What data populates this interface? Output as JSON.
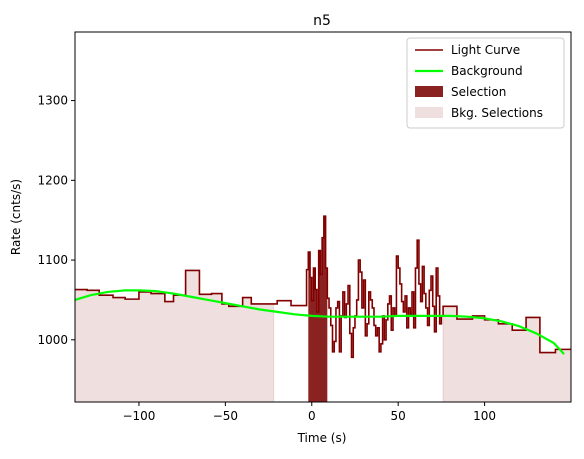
{
  "chart_data": {
    "type": "line",
    "title": "n5",
    "xlabel": "Time (s)",
    "ylabel": "Rate (cnts/s)",
    "xlim": [
      -137,
      150
    ],
    "ylim": [
      922,
      1386
    ],
    "xticks": [
      -100,
      -50,
      0,
      50,
      100
    ],
    "xtick_labels": [
      "−100",
      "−50",
      "0",
      "50",
      "100"
    ],
    "yticks": [
      1000,
      1100,
      1200,
      1300
    ],
    "ytick_labels": [
      "1000",
      "1100",
      "1200",
      "1300"
    ],
    "grid": false,
    "legend_position": "top-right",
    "legend": [
      {
        "label": "Light Curve",
        "kind": "line",
        "color": "#800000"
      },
      {
        "label": "Background",
        "kind": "line",
        "color": "#00ff00"
      },
      {
        "label": "Selection",
        "kind": "patch",
        "color": "#8b2222"
      },
      {
        "label": "Bkg. Selections",
        "kind": "patch",
        "color": "#efdfdf"
      }
    ],
    "bkg_selections": [
      [
        -137,
        -22
      ],
      [
        76,
        150
      ]
    ],
    "selection": [
      -2,
      9
    ],
    "light_curve": [
      [
        -137,
        1063
      ],
      [
        -130,
        1062
      ],
      [
        -123,
        1056
      ],
      [
        -115,
        1053
      ],
      [
        -108,
        1051
      ],
      [
        -100,
        1060
      ],
      [
        -93,
        1058
      ],
      [
        -85,
        1048
      ],
      [
        -80,
        1056
      ],
      [
        -73,
        1087
      ],
      [
        -65,
        1057
      ],
      [
        -58,
        1058
      ],
      [
        -52,
        1045
      ],
      [
        -48,
        1042
      ],
      [
        -40,
        1053
      ],
      [
        -35,
        1045
      ],
      [
        -27,
        1045
      ],
      [
        -20,
        1049
      ],
      [
        -12,
        1043
      ],
      [
        -3,
        1043
      ],
      [
        -3,
        1088
      ],
      [
        -2,
        1110
      ],
      [
        -1,
        1078
      ],
      [
        0,
        1049
      ],
      [
        1,
        1090
      ],
      [
        2,
        1063
      ],
      [
        3,
        1035
      ],
      [
        4,
        1112
      ],
      [
        5,
        1082
      ],
      [
        6,
        1128
      ],
      [
        7,
        1155
      ],
      [
        8,
        1090
      ],
      [
        9,
        1052
      ],
      [
        10,
        1040
      ],
      [
        11,
        1018
      ],
      [
        12,
        985
      ],
      [
        13,
        998
      ],
      [
        14,
        1040
      ],
      [
        15,
        1048
      ],
      [
        16,
        985
      ],
      [
        17,
        1030
      ],
      [
        18,
        1060
      ],
      [
        19,
        1028
      ],
      [
        20,
        1045
      ],
      [
        21,
        1068
      ],
      [
        22,
        1008
      ],
      [
        23,
        978
      ],
      [
        24,
        1015
      ],
      [
        25,
        1030
      ],
      [
        26,
        1050
      ],
      [
        27,
        1100
      ],
      [
        28,
        1085
      ],
      [
        29,
        1040
      ],
      [
        30,
        1075
      ],
      [
        31,
        1005
      ],
      [
        32,
        1020
      ],
      [
        33,
        1060
      ],
      [
        34,
        1050
      ],
      [
        35,
        1040
      ],
      [
        36,
        1018
      ],
      [
        37,
        1005
      ],
      [
        38,
        1015
      ],
      [
        39,
        985
      ],
      [
        40,
        995
      ],
      [
        41,
        1030
      ],
      [
        42,
        1000
      ],
      [
        43,
        1025
      ],
      [
        44,
        1045
      ],
      [
        45,
        1055
      ],
      [
        46,
        1012
      ],
      [
        47,
        1040
      ],
      [
        48,
        1030
      ],
      [
        49,
        1105
      ],
      [
        50,
        1090
      ],
      [
        51,
        1070
      ],
      [
        52,
        1048
      ],
      [
        53,
        1035
      ],
      [
        54,
        1055
      ],
      [
        55,
        1015
      ],
      [
        56,
        1040
      ],
      [
        57,
        1032
      ],
      [
        58,
        1060
      ],
      [
        59,
        1015
      ],
      [
        60,
        1090
      ],
      [
        61,
        1125
      ],
      [
        62,
        1070
      ],
      [
        63,
        1048
      ],
      [
        64,
        1092
      ],
      [
        65,
        1058
      ],
      [
        66,
        1040
      ],
      [
        67,
        1018
      ],
      [
        68,
        1062
      ],
      [
        69,
        1080
      ],
      [
        70,
        1042
      ],
      [
        71,
        1010
      ],
      [
        72,
        1090
      ],
      [
        73,
        1055
      ],
      [
        74,
        1020
      ],
      [
        75,
        1030
      ],
      [
        76,
        1033
      ],
      [
        76,
        1042
      ],
      [
        84,
        1026
      ],
      [
        93,
        1030
      ],
      [
        100,
        1025
      ],
      [
        108,
        1020
      ],
      [
        116,
        1012
      ],
      [
        124,
        1028
      ],
      [
        132,
        984
      ],
      [
        141,
        988
      ],
      [
        150,
        988
      ]
    ],
    "background": [
      [
        -137,
        1050
      ],
      [
        -128,
        1056
      ],
      [
        -118,
        1060
      ],
      [
        -108,
        1062
      ],
      [
        -100,
        1062
      ],
      [
        -90,
        1061
      ],
      [
        -80,
        1058
      ],
      [
        -70,
        1054
      ],
      [
        -60,
        1050
      ],
      [
        -50,
        1046
      ],
      [
        -40,
        1042
      ],
      [
        -30,
        1038
      ],
      [
        -20,
        1035
      ],
      [
        -10,
        1032
      ],
      [
        0,
        1030
      ],
      [
        10,
        1029
      ],
      [
        20,
        1029
      ],
      [
        30,
        1029
      ],
      [
        40,
        1029
      ],
      [
        50,
        1030
      ],
      [
        60,
        1030
      ],
      [
        70,
        1030
      ],
      [
        80,
        1030
      ],
      [
        90,
        1029
      ],
      [
        100,
        1027
      ],
      [
        110,
        1023
      ],
      [
        120,
        1017
      ],
      [
        130,
        1008
      ],
      [
        140,
        996
      ],
      [
        146,
        982
      ]
    ]
  }
}
